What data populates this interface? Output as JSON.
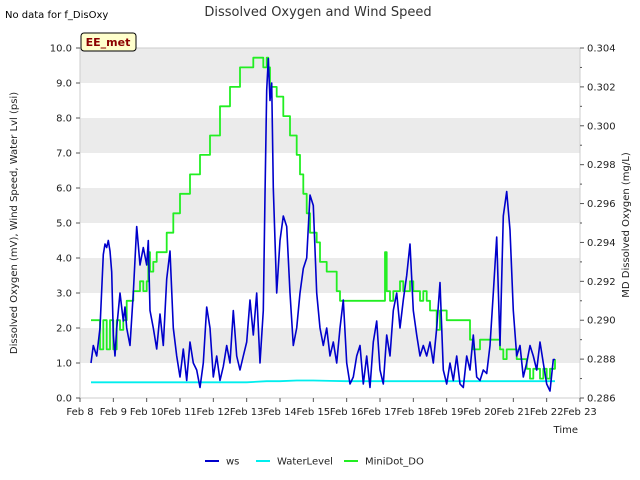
{
  "note": "No data for f_DisOxy",
  "badge": "EE_met",
  "colors": {
    "ws": "#0000cc",
    "WaterLevel": "#00eeee",
    "MiniDot_DO": "#22ee22",
    "band": "#ebebeb",
    "badge_fill": "#ffffcc",
    "badge_border": "#000000"
  },
  "chart_data": {
    "type": "line",
    "title": "Dissolved Oxygen and Wind Speed",
    "xlabel": "Time",
    "ylabel": "Dissolved Oxygen (mV), Wind Speed, Water Lvl (psi)",
    "y2label": "MD Dissolved Oxygen (mg/L)",
    "x_ticks": [
      "Feb 8",
      "Feb 9",
      "Feb 10",
      "Feb 11",
      "Feb 12",
      "Feb 13",
      "Feb 14",
      "Feb 15",
      "Feb 16",
      "Feb 17",
      "Feb 18",
      "Feb 19",
      "Feb 20",
      "Feb 21",
      "Feb 22",
      "Feb 23"
    ],
    "xlim": [
      0,
      15
    ],
    "ylim": [
      0,
      10
    ],
    "y_ticks": [
      "0.0",
      "1.0",
      "2.0",
      "3.0",
      "4.0",
      "5.0",
      "6.0",
      "7.0",
      "8.0",
      "9.0",
      "10.0"
    ],
    "y2lim": [
      0.286,
      0.304
    ],
    "y2_ticks": [
      "0.286",
      "0.288",
      "0.290",
      "0.292",
      "0.294",
      "0.296",
      "0.298",
      "0.300",
      "0.302",
      "0.304"
    ],
    "legend": [
      "ws",
      "WaterLevel",
      "MiniDot_DO"
    ],
    "legend_placement": "bottom-center",
    "grid": "alternating horizontal bands",
    "series": [
      {
        "name": "ws",
        "axis": "left",
        "x": [
          0.33,
          0.4,
          0.5,
          0.6,
          0.7,
          0.75,
          0.8,
          0.85,
          0.9,
          0.95,
          1.0,
          1.05,
          1.1,
          1.2,
          1.3,
          1.35,
          1.4,
          1.5,
          1.6,
          1.7,
          1.8,
          1.9,
          2.0,
          2.05,
          2.1,
          2.2,
          2.3,
          2.4,
          2.5,
          2.6,
          2.7,
          2.8,
          2.9,
          3.0,
          3.1,
          3.2,
          3.3,
          3.4,
          3.5,
          3.6,
          3.7,
          3.8,
          3.9,
          4.0,
          4.1,
          4.2,
          4.3,
          4.4,
          4.5,
          4.6,
          4.7,
          4.8,
          4.9,
          5.0,
          5.1,
          5.2,
          5.3,
          5.4,
          5.5,
          5.55,
          5.6,
          5.65,
          5.7,
          5.75,
          5.8,
          5.9,
          6.0,
          6.1,
          6.2,
          6.3,
          6.4,
          6.5,
          6.6,
          6.7,
          6.8,
          6.9,
          7.0,
          7.1,
          7.2,
          7.3,
          7.4,
          7.5,
          7.6,
          7.7,
          7.8,
          7.9,
          8.0,
          8.1,
          8.2,
          8.3,
          8.4,
          8.5,
          8.6,
          8.7,
          8.8,
          8.9,
          9.0,
          9.1,
          9.2,
          9.3,
          9.4,
          9.5,
          9.6,
          9.7,
          9.8,
          9.9,
          10.0,
          10.1,
          10.2,
          10.3,
          10.4,
          10.5,
          10.6,
          10.7,
          10.8,
          10.9,
          11.0,
          11.1,
          11.2,
          11.3,
          11.4,
          11.5,
          11.6,
          11.7,
          11.8,
          11.9,
          12.0,
          12.1,
          12.2,
          12.3,
          12.4,
          12.5,
          12.6,
          12.7,
          12.8,
          12.9,
          13.0,
          13.1,
          13.2,
          13.3,
          13.4,
          13.5,
          13.6,
          13.7,
          13.8,
          13.9,
          14.0,
          14.1,
          14.2,
          14.25
        ],
        "y": [
          1.0,
          1.5,
          1.2,
          2.0,
          4.1,
          4.4,
          4.3,
          4.5,
          4.2,
          3.6,
          1.8,
          1.2,
          2.0,
          3.0,
          2.2,
          2.6,
          2.0,
          1.5,
          3.0,
          4.9,
          3.8,
          4.3,
          3.8,
          4.5,
          2.5,
          2.0,
          1.4,
          2.4,
          1.5,
          3.4,
          4.2,
          2.0,
          1.2,
          0.6,
          1.4,
          0.5,
          1.6,
          1.0,
          0.8,
          0.3,
          1.0,
          2.6,
          2.0,
          0.6,
          1.2,
          0.5,
          0.9,
          1.5,
          1.0,
          2.5,
          1.2,
          0.8,
          1.2,
          1.6,
          2.8,
          1.8,
          3.0,
          1.0,
          2.5,
          5.8,
          8.8,
          9.7,
          8.5,
          9.0,
          6.0,
          3.0,
          4.5,
          5.2,
          4.9,
          3.0,
          1.5,
          2.0,
          3.0,
          3.7,
          4.0,
          5.8,
          5.5,
          3.0,
          2.0,
          1.5,
          2.0,
          1.2,
          1.6,
          1.0,
          2.0,
          2.8,
          1.0,
          0.4,
          0.6,
          1.2,
          1.5,
          0.4,
          1.2,
          0.3,
          1.6,
          2.2,
          0.8,
          0.4,
          1.8,
          1.2,
          2.5,
          3.0,
          2.0,
          2.8,
          3.5,
          4.4,
          2.5,
          1.8,
          1.2,
          1.5,
          1.2,
          1.6,
          1.0,
          2.0,
          3.3,
          0.8,
          0.4,
          1.0,
          0.5,
          1.2,
          0.4,
          0.3,
          1.2,
          0.8,
          1.8,
          0.6,
          0.5,
          0.8,
          0.7,
          1.5,
          3.0,
          4.6,
          1.5,
          5.2,
          5.9,
          4.8,
          2.5,
          1.2,
          1.5,
          0.6,
          1.0,
          1.5,
          1.2,
          0.8,
          1.6,
          1.0,
          0.4,
          0.2,
          1.1,
          1.1
        ]
      },
      {
        "name": "WaterLevel",
        "axis": "left",
        "x": [
          0.33,
          2.0,
          4.0,
          5.0,
          5.6,
          6.0,
          6.5,
          7.0,
          7.5,
          8.0,
          9.0,
          10.0,
          11.0,
          12.0,
          13.0,
          14.0,
          14.25
        ],
        "y": [
          0.45,
          0.45,
          0.45,
          0.45,
          0.48,
          0.48,
          0.5,
          0.5,
          0.49,
          0.48,
          0.48,
          0.48,
          0.48,
          0.48,
          0.48,
          0.48,
          0.48
        ]
      },
      {
        "name": "MiniDot_DO",
        "axis": "right",
        "x": [
          0.33,
          0.5,
          0.6,
          0.7,
          0.8,
          0.9,
          1.0,
          1.1,
          1.2,
          1.3,
          1.4,
          1.5,
          1.6,
          1.8,
          1.9,
          2.0,
          2.05,
          2.1,
          2.2,
          2.3,
          2.5,
          2.6,
          2.7,
          2.8,
          2.9,
          3.0,
          3.1,
          3.3,
          3.4,
          3.6,
          3.7,
          3.9,
          4.0,
          4.2,
          4.3,
          4.5,
          4.6,
          4.8,
          5.0,
          5.2,
          5.3,
          5.4,
          5.5,
          5.6,
          5.65,
          5.7,
          5.8,
          5.9,
          6.0,
          6.1,
          6.2,
          6.3,
          6.4,
          6.5,
          6.6,
          6.7,
          6.8,
          6.9,
          7.0,
          7.1,
          7.2,
          7.4,
          7.5,
          7.7,
          7.8,
          8.0,
          8.2,
          8.5,
          9.0,
          9.1,
          9.15,
          9.2,
          9.3,
          9.4,
          9.5,
          9.6,
          9.7,
          9.8,
          9.9,
          10.0,
          10.1,
          10.2,
          10.3,
          10.4,
          10.5,
          10.6,
          10.7,
          10.8,
          11.0,
          11.5,
          11.6,
          11.7,
          11.8,
          11.9,
          12.0,
          12.3,
          12.5,
          12.6,
          12.7,
          12.8,
          13.0,
          13.1,
          13.3,
          13.4,
          13.5,
          13.6,
          13.8,
          13.9,
          14.0,
          14.1,
          14.25
        ],
        "y": [
          0.29,
          0.29,
          0.2885,
          0.29,
          0.2885,
          0.29,
          0.2885,
          0.29,
          0.2895,
          0.29,
          0.291,
          0.291,
          0.2915,
          0.292,
          0.2915,
          0.292,
          0.2935,
          0.2925,
          0.293,
          0.2935,
          0.2935,
          0.2945,
          0.2945,
          0.2955,
          0.2955,
          0.2965,
          0.2965,
          0.2975,
          0.2975,
          0.2985,
          0.2985,
          0.2995,
          0.2995,
          0.301,
          0.301,
          0.302,
          0.302,
          0.303,
          0.303,
          0.3035,
          0.3035,
          0.3035,
          0.303,
          0.3035,
          0.303,
          0.302,
          0.302,
          0.3015,
          0.3015,
          0.3005,
          0.3005,
          0.2995,
          0.2995,
          0.2985,
          0.2975,
          0.2965,
          0.2955,
          0.2945,
          0.2945,
          0.294,
          0.293,
          0.2925,
          0.2925,
          0.2915,
          0.291,
          0.291,
          0.291,
          0.291,
          0.291,
          0.291,
          0.2935,
          0.2915,
          0.291,
          0.2915,
          0.2915,
          0.292,
          0.2915,
          0.2915,
          0.292,
          0.2915,
          0.2915,
          0.291,
          0.2915,
          0.291,
          0.2905,
          0.2905,
          0.2895,
          0.2905,
          0.29,
          0.29,
          0.29,
          0.289,
          0.2885,
          0.2885,
          0.289,
          0.289,
          0.289,
          0.2885,
          0.288,
          0.2885,
          0.2885,
          0.288,
          0.288,
          0.2875,
          0.287,
          0.2875,
          0.287,
          0.2875,
          0.287,
          0.2875,
          0.288
        ]
      }
    ]
  }
}
